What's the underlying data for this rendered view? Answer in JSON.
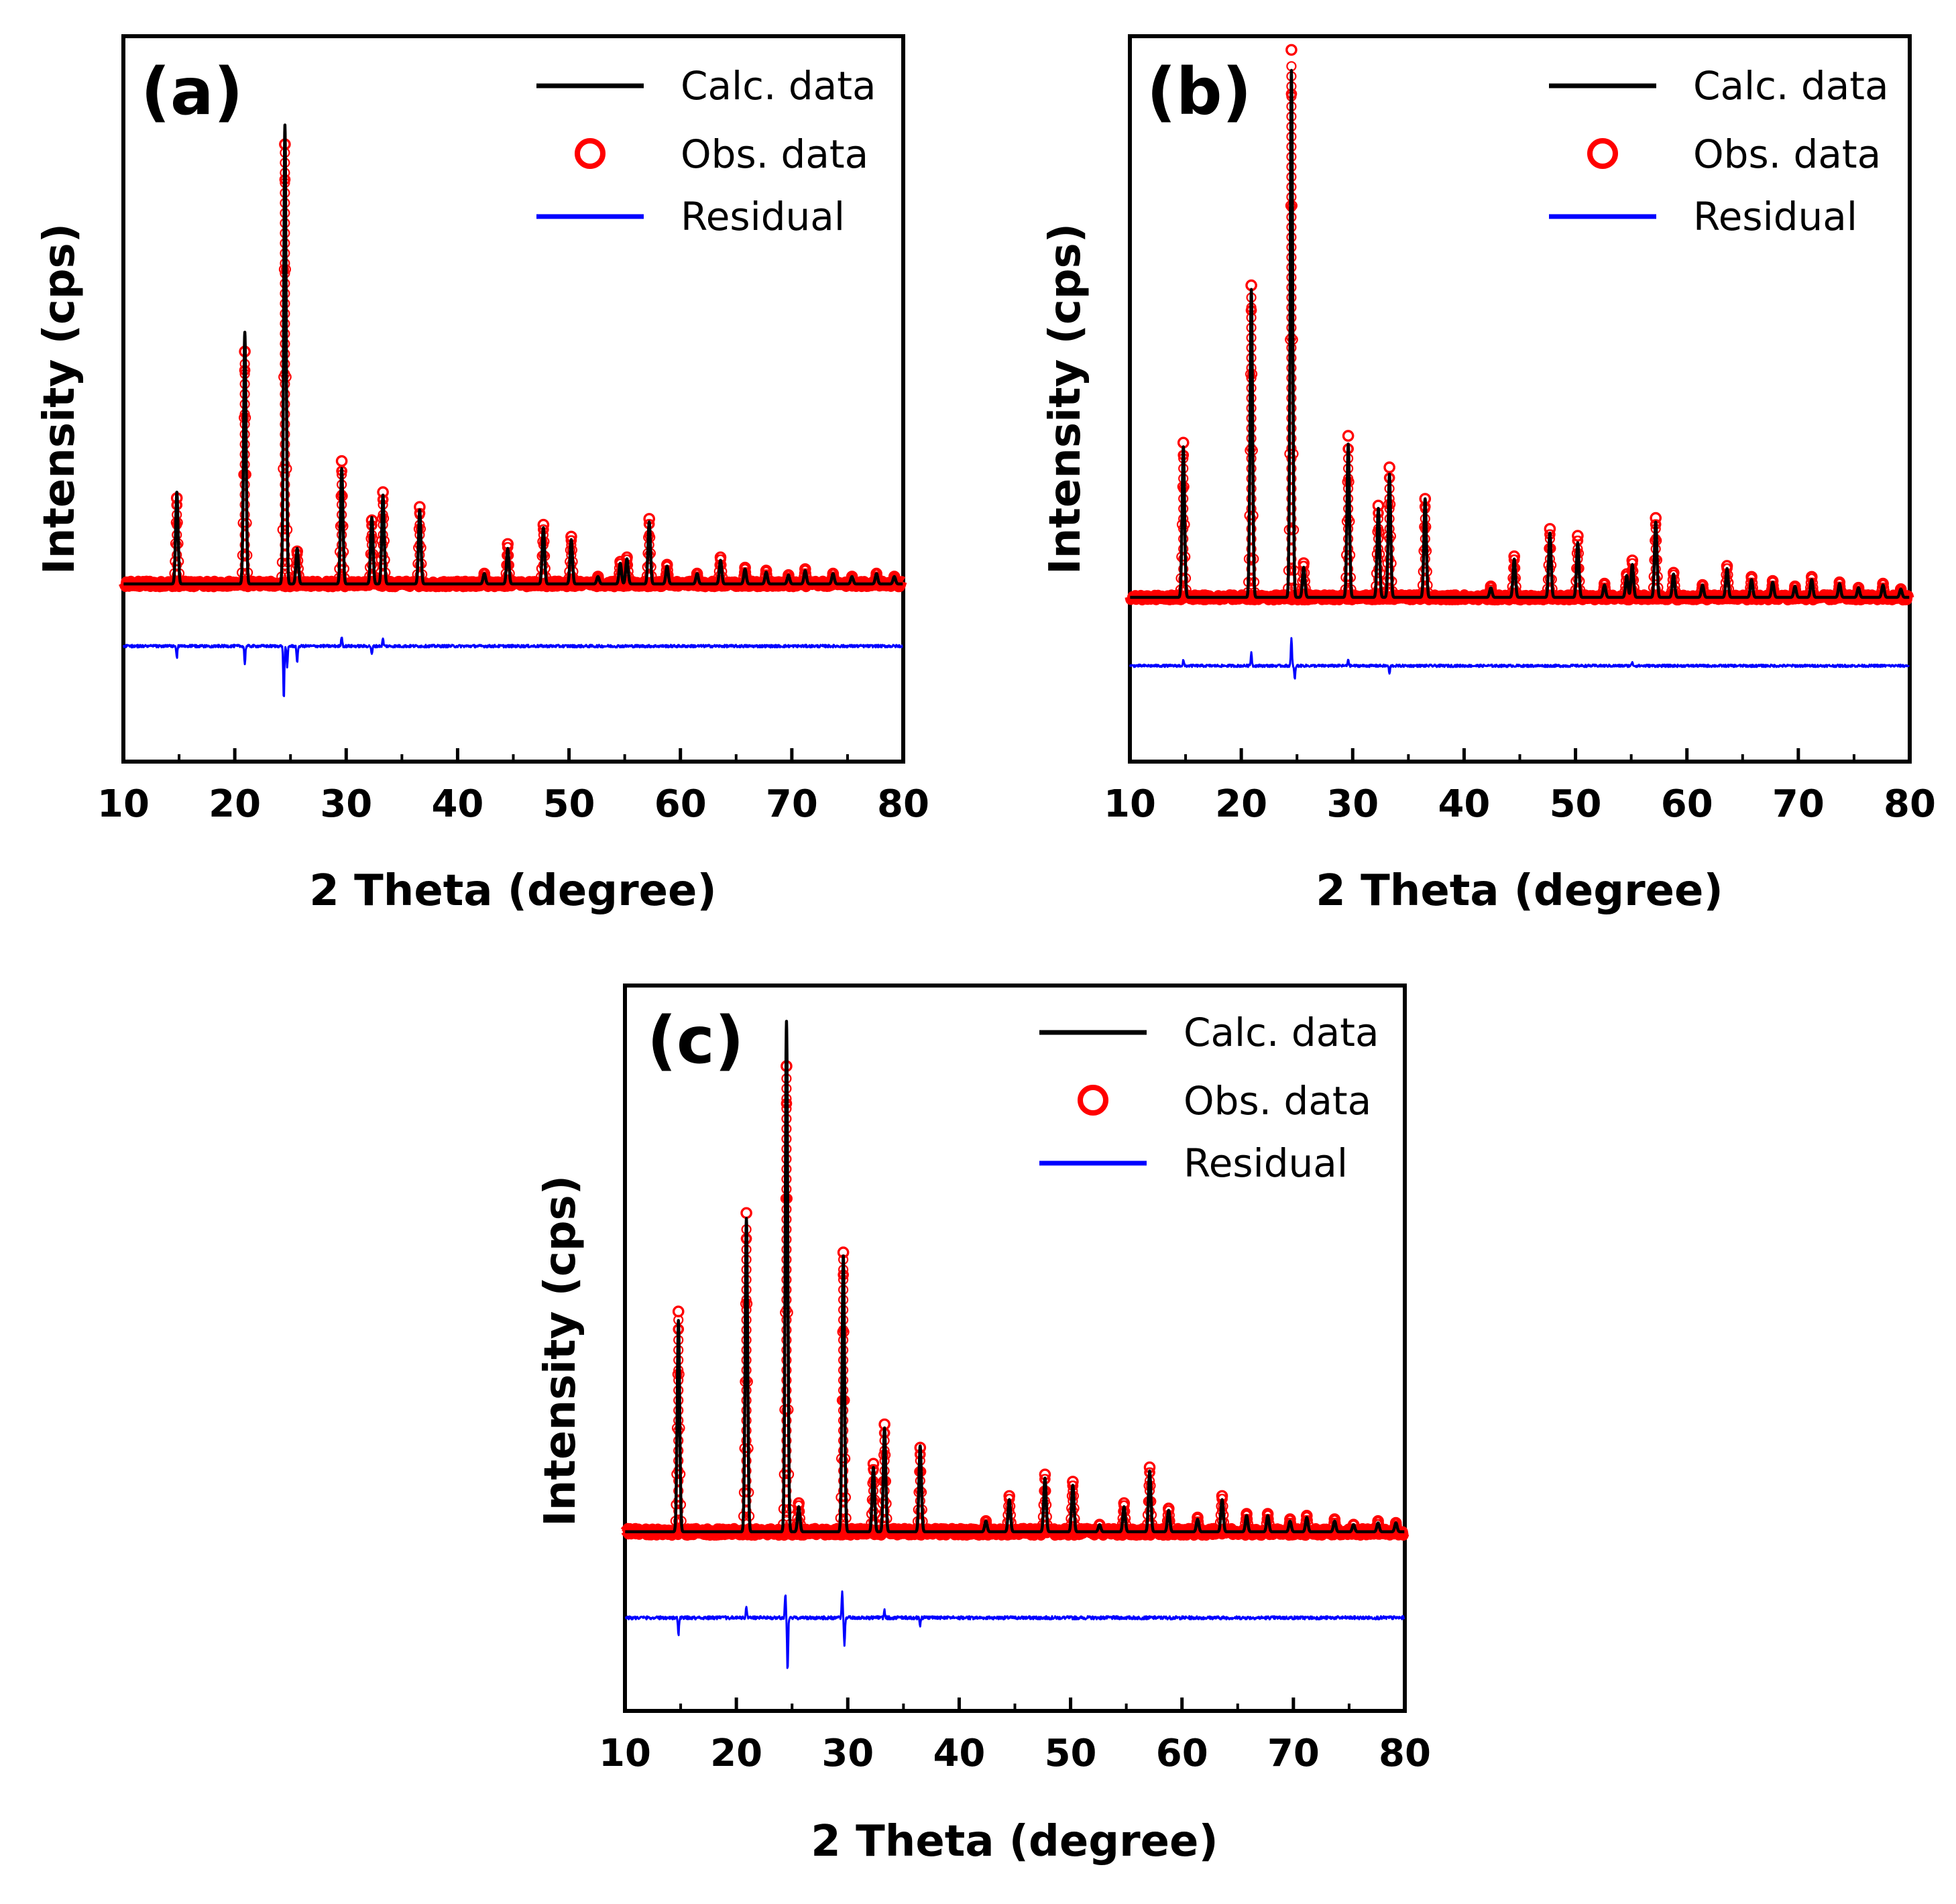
{
  "figure": {
    "description_free": true
  },
  "chart_data": [
    {
      "type": "line",
      "panel_label": "(a)",
      "xlabel": "2 Theta (degree)",
      "ylabel": "Intensity (cps)",
      "xlim": [
        10,
        80
      ],
      "xticks": [
        10,
        20,
        30,
        40,
        50,
        60,
        70,
        80
      ],
      "ylim": [
        -1.2,
        3.7
      ],
      "yticks_shown": false,
      "legend": {
        "placement": "top-right",
        "entries": [
          {
            "label": "Calc. data",
            "style": "line",
            "color": "#000000"
          },
          {
            "label": "Obs. data",
            "style": "circle",
            "color": "#ff0000"
          },
          {
            "label": "Residual",
            "style": "line",
            "color": "#0000ff"
          }
        ]
      },
      "series": [
        {
          "name": "Calc. data",
          "color": "#000000"
        },
        {
          "name": "Obs. data",
          "color": "#ff0000"
        },
        {
          "name": "Residual",
          "color": "#0000ff",
          "offset": -0.42
        }
      ],
      "peaks": [
        {
          "x": 14.8,
          "calc": 0.62,
          "obs": 0.58
        },
        {
          "x": 20.9,
          "calc": 1.7,
          "obs": 1.57
        },
        {
          "x": 24.5,
          "calc": 3.1,
          "obs": 2.97
        },
        {
          "x": 25.6,
          "calc": 0.24,
          "obs": 0.22
        },
        {
          "x": 29.6,
          "calc": 0.78,
          "obs": 0.83
        },
        {
          "x": 32.3,
          "calc": 0.45,
          "obs": 0.43
        },
        {
          "x": 33.3,
          "calc": 0.6,
          "obs": 0.62
        },
        {
          "x": 36.6,
          "calc": 0.5,
          "obs": 0.52
        },
        {
          "x": 42.4,
          "calc": 0.07,
          "obs": 0.07
        },
        {
          "x": 44.5,
          "calc": 0.24,
          "obs": 0.27
        },
        {
          "x": 47.7,
          "calc": 0.38,
          "obs": 0.4
        },
        {
          "x": 50.2,
          "calc": 0.3,
          "obs": 0.32
        },
        {
          "x": 52.6,
          "calc": 0.05,
          "obs": 0.05
        },
        {
          "x": 54.6,
          "calc": 0.14,
          "obs": 0.15
        },
        {
          "x": 55.2,
          "calc": 0.17,
          "obs": 0.18
        },
        {
          "x": 57.2,
          "calc": 0.42,
          "obs": 0.44
        },
        {
          "x": 58.8,
          "calc": 0.12,
          "obs": 0.13
        },
        {
          "x": 61.5,
          "calc": 0.07,
          "obs": 0.07
        },
        {
          "x": 63.6,
          "calc": 0.16,
          "obs": 0.18
        },
        {
          "x": 65.8,
          "calc": 0.1,
          "obs": 0.11
        },
        {
          "x": 67.7,
          "calc": 0.08,
          "obs": 0.09
        },
        {
          "x": 69.7,
          "calc": 0.06,
          "obs": 0.06
        },
        {
          "x": 71.2,
          "calc": 0.09,
          "obs": 0.1
        },
        {
          "x": 73.7,
          "calc": 0.07,
          "obs": 0.07
        },
        {
          "x": 75.4,
          "calc": 0.05,
          "obs": 0.05
        },
        {
          "x": 77.6,
          "calc": 0.07,
          "obs": 0.07
        },
        {
          "x": 79.2,
          "calc": 0.05,
          "obs": 0.05
        }
      ],
      "residual_spikes": [
        {
          "x": 14.8,
          "v": -0.08
        },
        {
          "x": 20.9,
          "v": -0.12
        },
        {
          "x": 24.4,
          "v": -0.36
        },
        {
          "x": 24.7,
          "v": -0.15
        },
        {
          "x": 25.6,
          "v": -0.12
        },
        {
          "x": 29.6,
          "v": 0.07
        },
        {
          "x": 32.3,
          "v": -0.06
        },
        {
          "x": 33.3,
          "v": 0.05
        }
      ]
    },
    {
      "type": "line",
      "panel_label": "(b)",
      "xlabel": "2 Theta (degree)",
      "ylabel": "Intensity (cps)",
      "xlim": [
        10,
        80
      ],
      "xticks": [
        10,
        20,
        30,
        40,
        50,
        60,
        70,
        80
      ],
      "ylim": [
        -1.2,
        4.1
      ],
      "yticks_shown": false,
      "legend": {
        "placement": "top-right",
        "entries": [
          {
            "label": "Calc. data",
            "style": "line",
            "color": "#000000"
          },
          {
            "label": "Obs. data",
            "style": "circle",
            "color": "#ff0000"
          },
          {
            "label": "Residual",
            "style": "line",
            "color": "#0000ff"
          }
        ]
      },
      "series": [
        {
          "name": "Calc. data",
          "color": "#000000"
        },
        {
          "name": "Obs. data",
          "color": "#ff0000"
        },
        {
          "name": "Residual",
          "color": "#0000ff",
          "offset": -0.5
        }
      ],
      "peaks": [
        {
          "x": 14.8,
          "calc": 1.1,
          "obs": 1.13
        },
        {
          "x": 20.9,
          "calc": 2.25,
          "obs": 2.28
        },
        {
          "x": 24.5,
          "calc": 3.85,
          "obs": 4.0
        },
        {
          "x": 25.6,
          "calc": 0.22,
          "obs": 0.25
        },
        {
          "x": 29.6,
          "calc": 1.12,
          "obs": 1.18
        },
        {
          "x": 32.3,
          "calc": 0.65,
          "obs": 0.67
        },
        {
          "x": 33.3,
          "calc": 0.9,
          "obs": 0.95
        },
        {
          "x": 36.5,
          "calc": 0.72,
          "obs": 0.72
        },
        {
          "x": 42.4,
          "calc": 0.07,
          "obs": 0.08
        },
        {
          "x": 44.5,
          "calc": 0.28,
          "obs": 0.3
        },
        {
          "x": 47.7,
          "calc": 0.47,
          "obs": 0.5
        },
        {
          "x": 50.2,
          "calc": 0.4,
          "obs": 0.45
        },
        {
          "x": 52.6,
          "calc": 0.09,
          "obs": 0.1
        },
        {
          "x": 54.6,
          "calc": 0.16,
          "obs": 0.17
        },
        {
          "x": 55.1,
          "calc": 0.24,
          "obs": 0.27
        },
        {
          "x": 57.2,
          "calc": 0.55,
          "obs": 0.58
        },
        {
          "x": 58.8,
          "calc": 0.17,
          "obs": 0.18
        },
        {
          "x": 61.4,
          "calc": 0.09,
          "obs": 0.09
        },
        {
          "x": 63.6,
          "calc": 0.21,
          "obs": 0.23
        },
        {
          "x": 65.8,
          "calc": 0.13,
          "obs": 0.15
        },
        {
          "x": 67.7,
          "calc": 0.11,
          "obs": 0.12
        },
        {
          "x": 69.7,
          "calc": 0.08,
          "obs": 0.08
        },
        {
          "x": 71.2,
          "calc": 0.13,
          "obs": 0.15
        },
        {
          "x": 73.7,
          "calc": 0.1,
          "obs": 0.11
        },
        {
          "x": 75.4,
          "calc": 0.07,
          "obs": 0.07
        },
        {
          "x": 77.6,
          "calc": 0.09,
          "obs": 0.1
        },
        {
          "x": 79.2,
          "calc": 0.06,
          "obs": 0.06
        }
      ],
      "residual_spikes": [
        {
          "x": 14.8,
          "v": 0.04
        },
        {
          "x": 20.9,
          "v": 0.1
        },
        {
          "x": 24.5,
          "v": 0.2
        },
        {
          "x": 24.8,
          "v": -0.1
        },
        {
          "x": 29.6,
          "v": 0.05
        },
        {
          "x": 33.3,
          "v": -0.06
        },
        {
          "x": 55.1,
          "v": 0.03
        }
      ]
    },
    {
      "type": "line",
      "panel_label": "(c)",
      "xlabel": "2 Theta (degree)",
      "ylabel": "Intensity (cps)",
      "xlim": [
        10,
        80
      ],
      "xticks": [
        10,
        20,
        30,
        40,
        50,
        60,
        70,
        80
      ],
      "ylim": [
        -1.0,
        3.05
      ],
      "yticks_shown": false,
      "legend": {
        "placement": "top-right",
        "entries": [
          {
            "label": "Calc. data",
            "style": "line",
            "color": "#000000"
          },
          {
            "label": "Obs. data",
            "style": "circle",
            "color": "#ff0000"
          },
          {
            "label": "Residual",
            "style": "line",
            "color": "#0000ff"
          }
        ]
      },
      "series": [
        {
          "name": "Calc. data",
          "color": "#000000"
        },
        {
          "name": "Obs. data",
          "color": "#ff0000"
        },
        {
          "name": "Residual",
          "color": "#0000ff",
          "offset": -0.48
        }
      ],
      "peaks": [
        {
          "x": 14.8,
          "calc": 1.18,
          "obs": 1.23
        },
        {
          "x": 20.9,
          "calc": 1.75,
          "obs": 1.78
        },
        {
          "x": 24.5,
          "calc": 2.85,
          "obs": 2.6
        },
        {
          "x": 25.6,
          "calc": 0.14,
          "obs": 0.16
        },
        {
          "x": 29.6,
          "calc": 1.54,
          "obs": 1.56
        },
        {
          "x": 32.3,
          "calc": 0.36,
          "obs": 0.38
        },
        {
          "x": 33.3,
          "calc": 0.58,
          "obs": 0.6
        },
        {
          "x": 36.5,
          "calc": 0.48,
          "obs": 0.47
        },
        {
          "x": 42.4,
          "calc": 0.06,
          "obs": 0.06
        },
        {
          "x": 44.5,
          "calc": 0.18,
          "obs": 0.2
        },
        {
          "x": 47.7,
          "calc": 0.3,
          "obs": 0.32
        },
        {
          "x": 50.2,
          "calc": 0.26,
          "obs": 0.28
        },
        {
          "x": 52.6,
          "calc": 0.04,
          "obs": 0.04
        },
        {
          "x": 54.8,
          "calc": 0.14,
          "obs": 0.16
        },
        {
          "x": 57.1,
          "calc": 0.34,
          "obs": 0.36
        },
        {
          "x": 58.8,
          "calc": 0.12,
          "obs": 0.13
        },
        {
          "x": 61.4,
          "calc": 0.07,
          "obs": 0.08
        },
        {
          "x": 63.6,
          "calc": 0.18,
          "obs": 0.2
        },
        {
          "x": 65.8,
          "calc": 0.09,
          "obs": 0.1
        },
        {
          "x": 67.7,
          "calc": 0.09,
          "obs": 0.1
        },
        {
          "x": 69.7,
          "calc": 0.06,
          "obs": 0.07
        },
        {
          "x": 71.2,
          "calc": 0.08,
          "obs": 0.09
        },
        {
          "x": 73.7,
          "calc": 0.06,
          "obs": 0.07
        },
        {
          "x": 75.4,
          "calc": 0.04,
          "obs": 0.04
        },
        {
          "x": 77.6,
          "calc": 0.05,
          "obs": 0.06
        },
        {
          "x": 79.2,
          "calc": 0.05,
          "obs": 0.05
        }
      ],
      "residual_spikes": [
        {
          "x": 14.8,
          "v": -0.1
        },
        {
          "x": 20.9,
          "v": 0.06
        },
        {
          "x": 24.4,
          "v": 0.13
        },
        {
          "x": 24.6,
          "v": -0.3
        },
        {
          "x": 29.5,
          "v": 0.14
        },
        {
          "x": 29.7,
          "v": -0.15
        },
        {
          "x": 33.3,
          "v": 0.04
        },
        {
          "x": 36.5,
          "v": -0.04
        }
      ]
    }
  ]
}
